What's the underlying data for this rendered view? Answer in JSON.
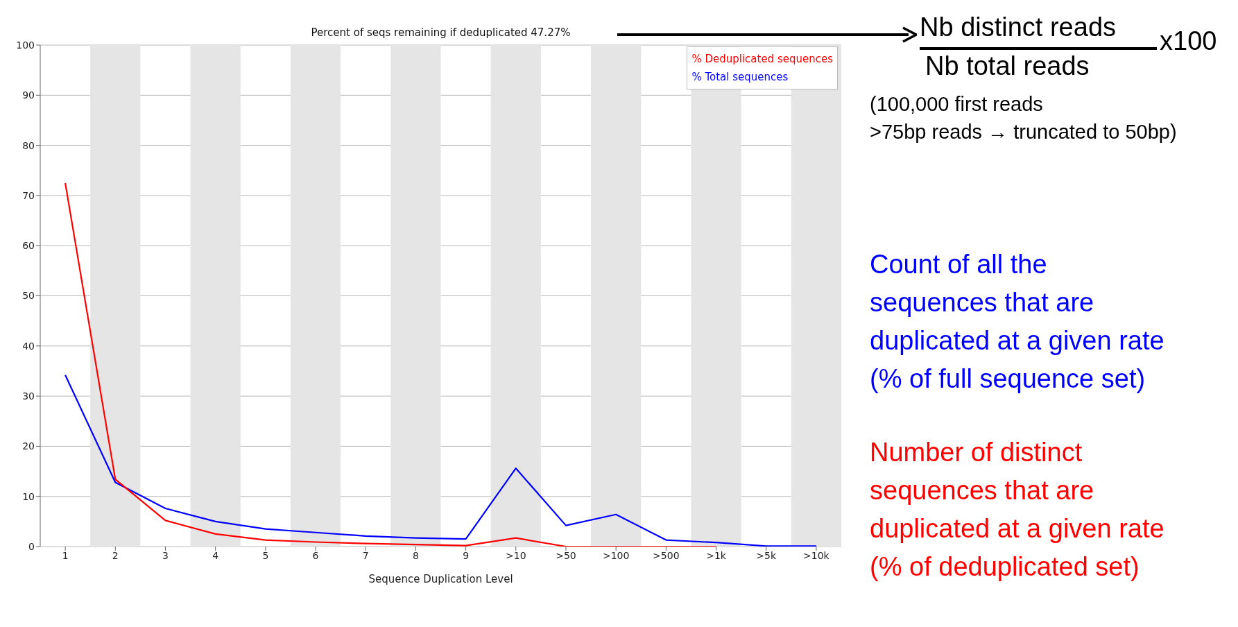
{
  "chart_data": {
    "type": "line",
    "title": "Percent of seqs remaining if deduplicated 47.27%",
    "xlabel": "Sequence Duplication Level",
    "categories": [
      "1",
      "2",
      "3",
      "4",
      "5",
      "6",
      "7",
      "8",
      "9",
      ">10",
      ">50",
      ">100",
      ">500",
      ">1k",
      ">5k",
      ">10k"
    ],
    "series": [
      {
        "name": "% Deduplicated sequences",
        "color": "#ff0000",
        "values": [
          72.5,
          13.4,
          5.2,
          2.5,
          1.3,
          0.9,
          0.6,
          0.4,
          0.2,
          1.7,
          0,
          0,
          0,
          0,
          null,
          null
        ]
      },
      {
        "name": "% Total sequences",
        "color": "#0000ff",
        "values": [
          34.2,
          12.8,
          7.6,
          5.0,
          3.5,
          2.8,
          2.1,
          1.7,
          1.5,
          15.6,
          4.2,
          6.4,
          1.3,
          0.8,
          0.1,
          0.1
        ]
      }
    ],
    "ylim": [
      0,
      100
    ],
    "yticks": [
      0,
      10,
      20,
      30,
      40,
      50,
      60,
      70,
      80,
      90,
      100
    ],
    "grid": true,
    "legend": "top right",
    "marker": "none",
    "line_style": "solid",
    "annotations": [
      "Nb distinct reads",
      "Nb total reads",
      "x100",
      "(100,000 first reads\n>75bp reads → truncated to 50bp)",
      "Count of all the\nsequences that are\nduplicated at a given rate\n(% of full sequence set)",
      "Number of distinct\nsequences that are\nduplicated at a given rate\n(% of deduplicated set)"
    ]
  }
}
